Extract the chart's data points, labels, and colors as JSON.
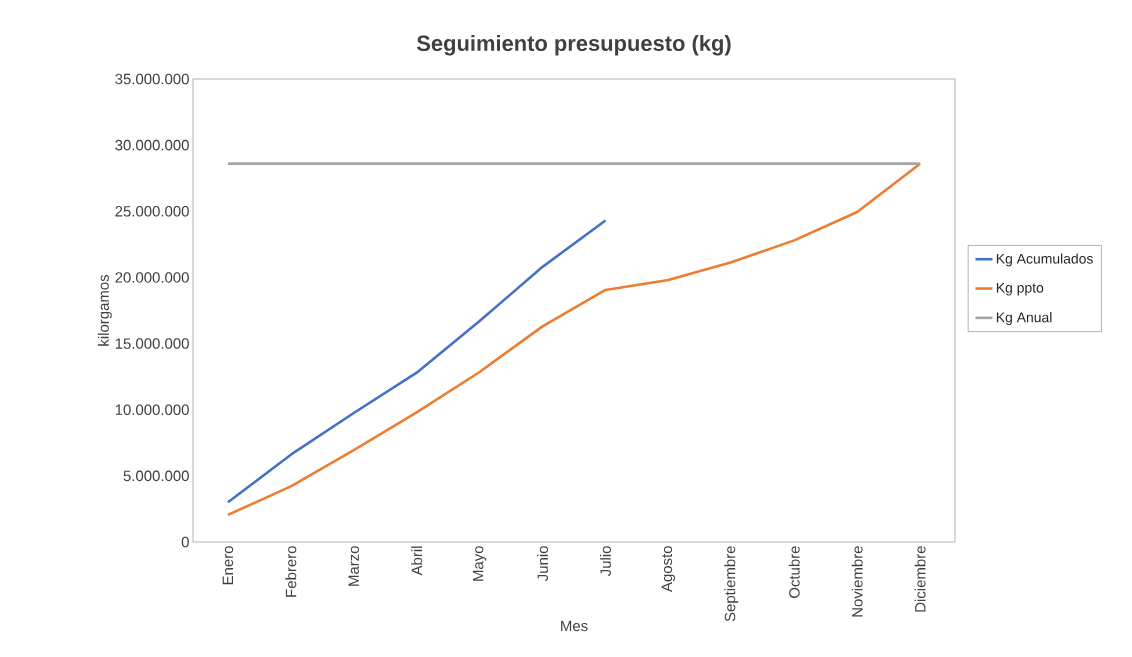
{
  "chart_data": {
    "type": "line",
    "title": "Seguimiento presupuesto (kg)",
    "xlabel": "Mes",
    "ylabel": "kilorgamos",
    "categories": [
      "Enero",
      "Febrero",
      "Marzo",
      "Abril",
      "Mayo",
      "Junio",
      "Julio",
      "Agosto",
      "Septiembre",
      "Octubre",
      "Noviembre",
      "Diciembre"
    ],
    "series": [
      {
        "name": "Kg Acumulados",
        "color": "#4472c4",
        "values": [
          3000000,
          6600000,
          9750000,
          12800000,
          16700000,
          20800000,
          24300000,
          null,
          null,
          null,
          null,
          null
        ]
      },
      {
        "name": "Kg ppto",
        "color": "#ed7d31",
        "values": [
          2050000,
          4200000,
          6950000,
          9800000,
          12850000,
          16300000,
          19050000,
          19800000,
          21150000,
          22800000,
          24950000,
          28600000
        ]
      },
      {
        "name": "Kg Anual",
        "color": "#a5a5a5",
        "values": [
          28600000,
          28600000,
          28600000,
          28600000,
          28600000,
          28600000,
          28600000,
          28600000,
          28600000,
          28600000,
          28600000,
          28600000
        ]
      }
    ],
    "ylim": [
      0,
      35000000
    ],
    "yticks": [
      0,
      {
        "value": 5000000,
        "label": "5.000.000"
      },
      {
        "value": 10000000,
        "label": "10.000.000"
      },
      {
        "value": 15000000,
        "label": "15.000.000"
      },
      {
        "value": 20000000,
        "label": "20.000.000"
      },
      {
        "value": 25000000,
        "label": "25.000.000"
      },
      {
        "value": 30000000,
        "label": "30.000.000"
      },
      {
        "value": 35000000,
        "label": "35.000.000"
      }
    ],
    "grid": false,
    "legend": "right",
    "marker": "none",
    "line_style": "solid"
  }
}
